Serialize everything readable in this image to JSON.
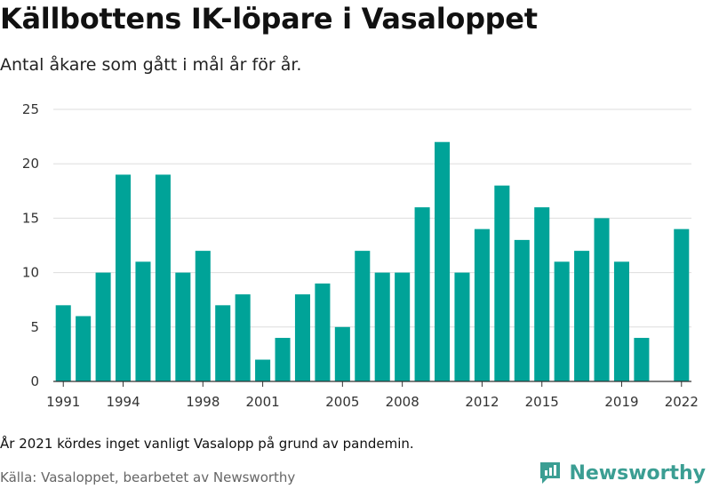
{
  "header": {
    "title": "Källbottens IK-löpare i Vasaloppet",
    "subtitle": "Antal åkare som gått i mål år för år."
  },
  "footer": {
    "note": "År 2021 kördes inget vanligt Vasalopp på grund av pandemin.",
    "source": "Källa: Vasaloppet, bearbetet av Newsworthy",
    "brand": "Newsworthy"
  },
  "colors": {
    "bar": "#00a398",
    "grid": "#dddddd",
    "axis": "#333333",
    "brand": "#3b9e93"
  },
  "chart_data": {
    "type": "bar",
    "categories": [
      "1991",
      "1992",
      "1993",
      "1994",
      "1995",
      "1996",
      "1997",
      "1998",
      "1999",
      "2000",
      "2001",
      "2002",
      "2003",
      "2004",
      "2005",
      "2006",
      "2007",
      "2008",
      "2009",
      "2010",
      "2011",
      "2012",
      "2013",
      "2014",
      "2015",
      "2016",
      "2017",
      "2018",
      "2019",
      "2020",
      "2021",
      "2022"
    ],
    "values": [
      7,
      6,
      10,
      19,
      11,
      19,
      10,
      12,
      7,
      8,
      2,
      4,
      8,
      9,
      5,
      12,
      10,
      10,
      16,
      22,
      10,
      14,
      18,
      13,
      16,
      11,
      12,
      15,
      11,
      4,
      null,
      14
    ],
    "x_tick_labels": [
      "1991",
      "1994",
      "1998",
      "2001",
      "2005",
      "2008",
      "2012",
      "2015",
      "2019",
      "2022"
    ],
    "y_ticks": [
      0,
      5,
      10,
      15,
      20,
      25
    ],
    "ylim": [
      0,
      25
    ],
    "grid": true
  }
}
